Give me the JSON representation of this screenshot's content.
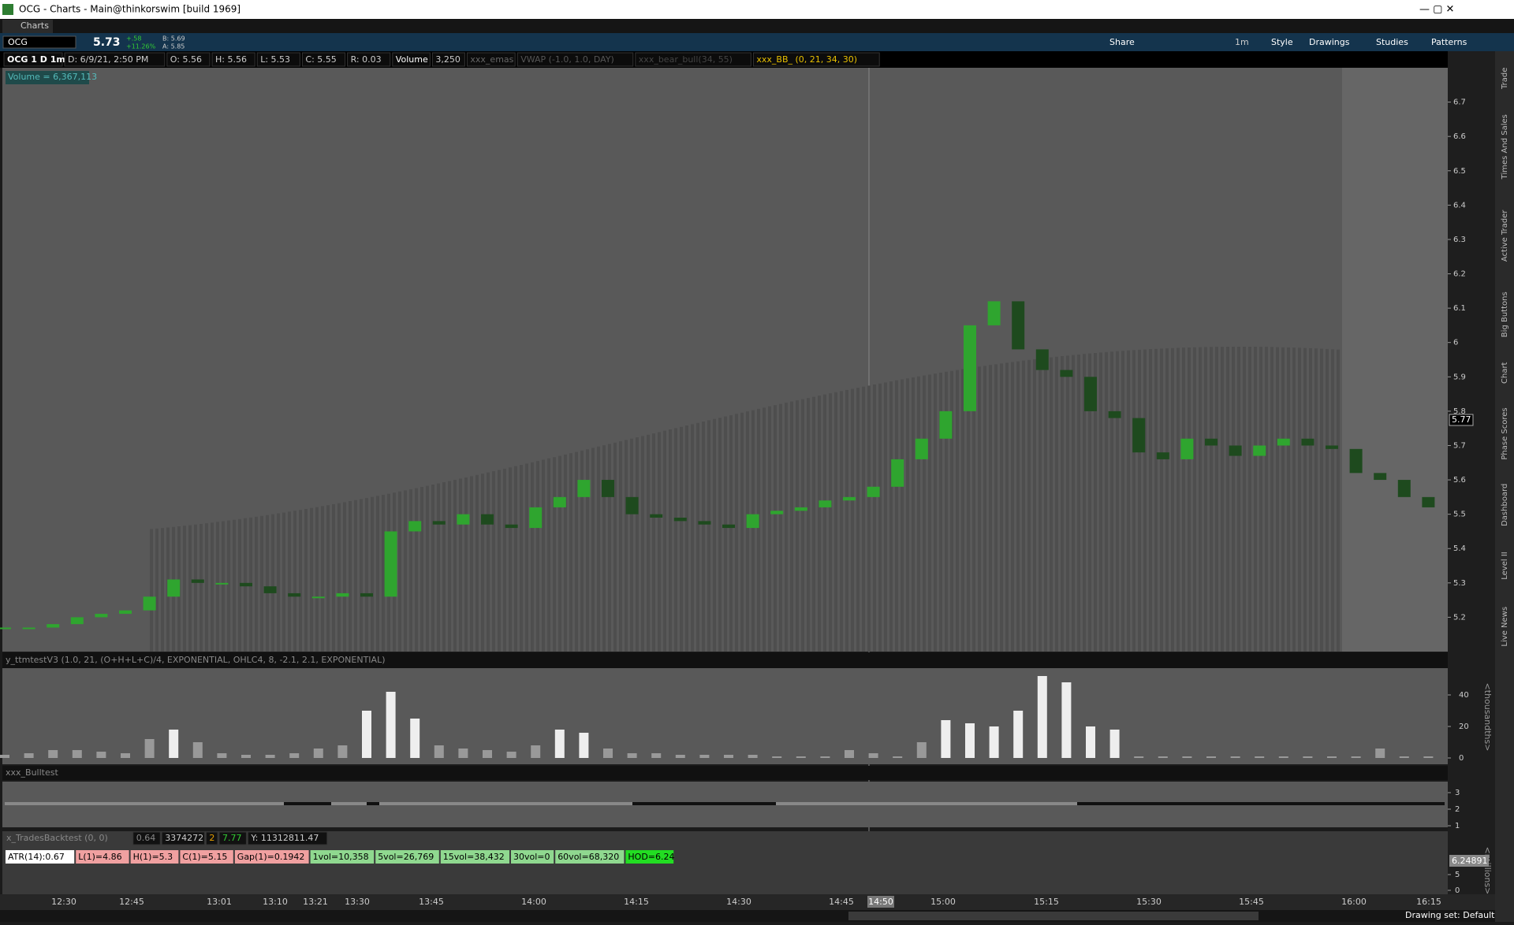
{
  "window": {
    "title": "OCG - Charts -  Main@thinkorswim [build 1969]"
  },
  "tabs": {
    "active": "Charts"
  },
  "toolbar": {
    "symbol": "OCG",
    "last": "5.73",
    "change": "+.58",
    "change_pct": "+11.26%",
    "bid": "B: 5.69",
    "ask": "A: 5.85",
    "interval": "1m",
    "buttons": [
      "Share",
      "Style",
      "Drawings",
      "Studies",
      "Patterns"
    ]
  },
  "header": {
    "items": [
      "OCG 1 D 1m",
      "D: 6/9/21, 2:50 PM",
      "O: 5.56",
      "H: 5.56",
      "L: 5.53",
      "C: 5.55",
      "R: 0.03",
      "Volume",
      "3,250",
      "xxx_emas",
      "VWAP (-1.0, 1.0, DAY)",
      "xxx_bear_bull(34, 55)",
      "xxx_BB_ (0, 21, 34, 30)"
    ]
  },
  "chart_data": {
    "type": "candlestick",
    "volume_label": "Volume = 6,367,113",
    "price_marker": "5.77",
    "ylim": [
      5.1,
      6.8
    ],
    "yticks": [
      5.2,
      5.3,
      5.4,
      5.5,
      5.6,
      5.7,
      5.8,
      5.9,
      6,
      6.1,
      6.2,
      6.3,
      6.4,
      6.5,
      6.6,
      6.7
    ],
    "closes": [
      5.17,
      5.17,
      5.18,
      5.2,
      5.21,
      5.22,
      5.26,
      5.31,
      5.3,
      5.3,
      5.29,
      5.27,
      5.26,
      5.26,
      5.27,
      5.26,
      5.45,
      5.48,
      5.47,
      5.5,
      5.47,
      5.46,
      5.52,
      5.55,
      5.6,
      5.55,
      5.5,
      5.49,
      5.48,
      5.47,
      5.46,
      5.5,
      5.51,
      5.52,
      5.54,
      5.55,
      5.58,
      5.66,
      5.72,
      5.8,
      6.05,
      6.12,
      5.98,
      5.92,
      5.9,
      5.8,
      5.78,
      5.68,
      5.66,
      5.72,
      5.7,
      5.67,
      5.7,
      5.72,
      5.7,
      5.69,
      5.62,
      5.6,
      5.55,
      5.52
    ]
  },
  "time_axis": {
    "labels": [
      "12:30",
      "12:45",
      "13:01",
      "13:10",
      "13:21",
      "13:30",
      "13:45",
      "14:00",
      "14:15",
      "14:30",
      "14:45",
      "14:50",
      "15:00",
      "15:15",
      "15:30",
      "15:45",
      "16:00",
      "16:15"
    ]
  },
  "oscillator": {
    "label": "y_ttmtestV3 (1.0, 21, (O+H+L+C)/4, EXPONENTIAL, OHLC4, 8, -2.1, 2.1, EXPONENTIAL)",
    "axis_label": "<thousandths>",
    "ylim": [
      -3,
      56
    ],
    "yticks": [
      0,
      20,
      40
    ],
    "values": [
      2,
      3,
      5,
      5,
      4,
      3,
      12,
      18,
      10,
      3,
      2,
      2,
      3,
      6,
      8,
      30,
      42,
      25,
      8,
      6,
      5,
      4,
      8,
      18,
      16,
      6,
      3,
      3,
      2,
      2,
      2,
      2,
      1,
      1,
      1,
      5,
      3,
      1,
      10,
      24,
      22,
      20,
      30,
      52,
      48,
      20,
      18,
      1,
      1,
      1,
      1,
      1,
      1,
      1,
      1,
      1,
      1,
      6,
      1,
      1
    ]
  },
  "bulltest": {
    "label": "xxx_Bulltest",
    "yticks": [
      1,
      2,
      3
    ]
  },
  "backtest": {
    "label": "x_TradesBacktest (0, 0)",
    "fields": [
      "0.64",
      "3374272",
      "2",
      "7.77",
      "Y: 11312811.47"
    ],
    "chips": [
      "ATR(14):0.67",
      "L(1)=4.86",
      "H(1)=5.3",
      "C(1)=5.15",
      "Gap(1)=0.1942",
      "1vol=10,358",
      "5vol=26,769",
      "15vol=38,432",
      "30vol=0",
      "60vol=68,320",
      "HOD=6.24"
    ],
    "axis_label": "<millions>",
    "yticks": [
      0,
      5
    ],
    "marker": "6.24891"
  },
  "status": {
    "drawing_set": "Drawing set: Default"
  },
  "side_tabs": [
    "Trade",
    "Times And Sales",
    "Active Trader",
    "Big Buttons",
    "Chart",
    "Phase Scores",
    "Dashboard",
    "Level II",
    "Live News"
  ]
}
